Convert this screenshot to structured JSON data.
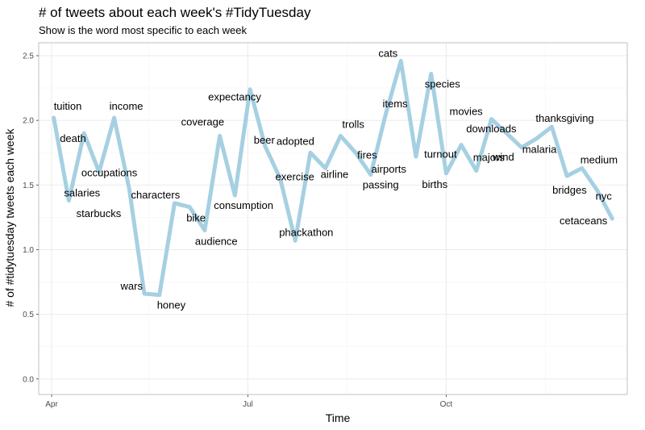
{
  "chart_data": {
    "type": "line",
    "title": "# of tweets about each week's #TidyTuesday",
    "subtitle": "Show is the word most specific to each week",
    "xlabel": "Time",
    "ylabel": "# of #tidytuesday tweets each week",
    "ylim": [
      -0.12,
      2.6
    ],
    "yticks": [
      0.0,
      0.5,
      1.0,
      1.5,
      2.0,
      2.5
    ],
    "ytick_labels": [
      "0.0",
      "0.5",
      "1.0",
      "1.5",
      "2.0",
      "2.5"
    ],
    "xlim": [
      "2018-03-26",
      "2018-12-24"
    ],
    "xticks": [
      "2018-04-01",
      "2018-07-01",
      "2018-10-01"
    ],
    "xtick_labels": [
      "Apr",
      "Jul",
      "Oct"
    ],
    "xminor": [
      "2018-05-16",
      "2018-08-16",
      "2018-11-16"
    ],
    "grid": true,
    "line_color": "#a6d0e2",
    "points": [
      {
        "x": "2018-04-02",
        "y": 2.02,
        "label": "tuition",
        "dx": 0,
        "dy": -10,
        "anchor": "start"
      },
      {
        "x": "2018-04-09",
        "y": 1.38,
        "label": "salaries",
        "dx": -6,
        "dy": -5,
        "anchor": "start"
      },
      {
        "x": "2018-04-16",
        "y": 1.9,
        "label": "death",
        "dx": -30,
        "dy": 11,
        "anchor": "start"
      },
      {
        "x": "2018-04-23",
        "y": 1.6,
        "label": "occupations",
        "dx": -22,
        "dy": 5,
        "anchor": "start"
      },
      {
        "x": "2018-04-30",
        "y": 2.02,
        "label": "income",
        "dx": -6,
        "dy": -10,
        "anchor": "start"
      },
      {
        "x": "2018-05-07",
        "y": 1.47,
        "label": "starbucks",
        "dx": -10,
        "dy": 35,
        "anchor": "end"
      },
      {
        "x": "2018-05-14",
        "y": 0.66,
        "label": "wars",
        "dx": -2,
        "dy": -5,
        "anchor": "end"
      },
      {
        "x": "2018-05-21",
        "y": 0.65,
        "label": "honey",
        "dx": -3,
        "dy": 17,
        "anchor": "start"
      },
      {
        "x": "2018-05-28",
        "y": 1.36,
        "label": "characters",
        "dx": -54,
        "dy": -6,
        "anchor": "start"
      },
      {
        "x": "2018-06-04",
        "y": 1.33,
        "label": "bike",
        "dx": -4,
        "dy": 18,
        "anchor": "start"
      },
      {
        "x": "2018-06-11",
        "y": 1.15,
        "label": "audience",
        "dx": -12,
        "dy": 18,
        "anchor": "start"
      },
      {
        "x": "2018-06-18",
        "y": 1.88,
        "label": "coverage",
        "dx": -48,
        "dy": -13,
        "anchor": "start"
      },
      {
        "x": "2018-06-25",
        "y": 1.42,
        "label": "consumption",
        "dx": -26,
        "dy": 17,
        "anchor": "start"
      },
      {
        "x": "2018-07-02",
        "y": 2.24,
        "label": "expectancy",
        "dx": -52,
        "dy": 14,
        "anchor": "start"
      },
      {
        "x": "2018-07-09",
        "y": 1.8,
        "label": "beer",
        "dx": -14,
        "dy": -3,
        "anchor": "start"
      },
      {
        "x": "2018-07-16",
        "y": 1.55,
        "label": "exercise",
        "dx": -6,
        "dy": 2,
        "anchor": "start"
      },
      {
        "x": "2018-07-23",
        "y": 1.07,
        "label": "phackathon",
        "dx": -20,
        "dy": -6,
        "anchor": "start"
      },
      {
        "x": "2018-07-30",
        "y": 1.75,
        "label": "adopted",
        "dx": -42,
        "dy": -10,
        "anchor": "start"
      },
      {
        "x": "2018-08-06",
        "y": 1.63,
        "label": "airline",
        "dx": -6,
        "dy": 12,
        "anchor": "start"
      },
      {
        "x": "2018-08-13",
        "y": 1.88,
        "label": "trolls",
        "dx": 2,
        "dy": -10,
        "anchor": "start"
      },
      {
        "x": "2018-08-20",
        "y": 1.75,
        "label": "fires",
        "dx": 2,
        "dy": 7,
        "anchor": "start"
      },
      {
        "x": "2018-08-27",
        "y": 1.58,
        "label": "passing",
        "dx": -10,
        "dy": 17,
        "anchor": "start"
      },
      {
        "x": "2018-09-03",
        "y": 2.05,
        "label": "items",
        "dx": -4,
        "dy": -8,
        "anchor": "start"
      },
      {
        "x": "2018-09-10",
        "y": 2.46,
        "label": "cats",
        "dx": -4,
        "dy": -5,
        "anchor": "end"
      },
      {
        "x": "2018-09-17",
        "y": 1.72,
        "label": "airports",
        "dx": -12,
        "dy": 20,
        "anchor": "end"
      },
      {
        "x": "2018-09-24",
        "y": 2.36,
        "label": "species",
        "dx": -8,
        "dy": 17,
        "anchor": "start"
      },
      {
        "x": "2018-10-01",
        "y": 1.59,
        "label": "births",
        "dx": -30,
        "dy": 18,
        "anchor": "start"
      },
      {
        "x": "2018-10-08",
        "y": 1.81,
        "label": "turnout",
        "dx": -46,
        "dy": 16,
        "anchor": "start"
      },
      {
        "x": "2018-10-15",
        "y": 1.61,
        "label": "majors",
        "dx": -4,
        "dy": -12,
        "anchor": "start"
      },
      {
        "x": "2018-10-22",
        "y": 2.01,
        "label": "movies",
        "dx": -52,
        "dy": -5,
        "anchor": "start"
      },
      {
        "x": "2018-10-29",
        "y": 1.9,
        "label": "downloads",
        "dx": -50,
        "dy": -1,
        "anchor": "start"
      },
      {
        "x": "2018-11-05",
        "y": 1.79,
        "label": "wind",
        "dx": -36,
        "dy": 16,
        "anchor": "start"
      },
      {
        "x": "2018-11-12",
        "y": 1.86,
        "label": "malaria",
        "dx": -18,
        "dy": 18,
        "anchor": "start"
      },
      {
        "x": "2018-11-19",
        "y": 1.95,
        "label": "thanksgiving",
        "dx": -20,
        "dy": -6,
        "anchor": "start"
      },
      {
        "x": "2018-11-26",
        "y": 1.57,
        "label": "bridges",
        "dx": -18,
        "dy": 22,
        "anchor": "start"
      },
      {
        "x": "2018-12-03",
        "y": 1.63,
        "label": "medium",
        "dx": -2,
        "dy": -6,
        "anchor": "start"
      },
      {
        "x": "2018-12-10",
        "y": 1.46,
        "label": "nyc",
        "dx": -2,
        "dy": 12,
        "anchor": "start"
      },
      {
        "x": "2018-12-17",
        "y": 1.24,
        "label": "cetaceans",
        "dx": -6,
        "dy": 7,
        "anchor": "end"
      }
    ]
  }
}
